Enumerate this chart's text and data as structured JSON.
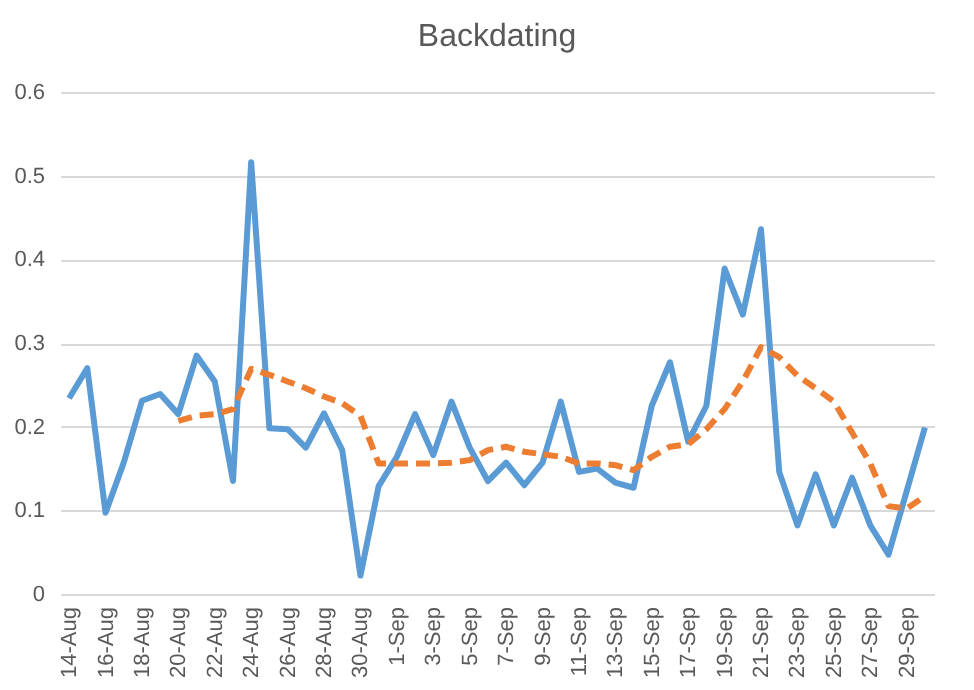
{
  "chart_data": {
    "type": "line",
    "title": "Backdating",
    "categories": [
      "14-Aug",
      null,
      "16-Aug",
      null,
      "18-Aug",
      null,
      "20-Aug",
      null,
      "22-Aug",
      null,
      "24-Aug",
      null,
      "26-Aug",
      null,
      "28-Aug",
      null,
      "30-Aug",
      null,
      "1-Sep",
      null,
      "3-Sep",
      null,
      "5-Sep",
      null,
      "7-Sep",
      null,
      "9-Sep",
      null,
      "11-Sep",
      null,
      "13-Sep",
      null,
      "15-Sep",
      null,
      "17-Sep",
      null,
      "19-Sep",
      null,
      "21-Sep",
      null,
      "23-Sep",
      null,
      "25-Sep",
      null,
      "27-Sep",
      null,
      "29-Sep",
      null
    ],
    "series": [
      {
        "color": "#5b9bd5",
        "line_style": "solid",
        "values": [
          0.234,
          0.27,
          0.097,
          0.157,
          0.231,
          0.239,
          0.215,
          0.285,
          0.254,
          0.135,
          0.516,
          0.198,
          0.197,
          0.175,
          0.216,
          0.172,
          0.022,
          0.129,
          0.164,
          0.215,
          0.166,
          0.23,
          0.175,
          0.135,
          0.157,
          0.13,
          0.157,
          0.23,
          0.146,
          0.15,
          0.133,
          0.127,
          0.225,
          0.277,
          0.182,
          0.225,
          0.389,
          0.334,
          0.436,
          0.146,
          0.082,
          0.143,
          0.082,
          0.139,
          0.082,
          0.047,
          0.123,
          0.199
        ]
      },
      {
        "color": "#ed7d31",
        "line_style": "dashed",
        "values": [
          null,
          null,
          null,
          null,
          null,
          null,
          0.207,
          0.213,
          0.215,
          0.221,
          0.269,
          0.262,
          0.254,
          0.246,
          0.236,
          0.228,
          0.213,
          0.156,
          0.156,
          0.156,
          0.156,
          0.157,
          0.16,
          0.172,
          0.176,
          0.17,
          0.167,
          0.164,
          0.156,
          0.156,
          0.154,
          0.148,
          0.164,
          0.176,
          0.179,
          0.197,
          0.221,
          0.254,
          0.295,
          0.283,
          0.261,
          0.246,
          0.23,
          0.193,
          0.156,
          0.105,
          0.102,
          0.117
        ]
      }
    ],
    "ylim": [
      0,
      0.6
    ],
    "yticks": [
      0,
      0.1,
      0.2,
      0.3,
      0.4,
      0.5,
      0.6
    ],
    "grid": "y"
  }
}
